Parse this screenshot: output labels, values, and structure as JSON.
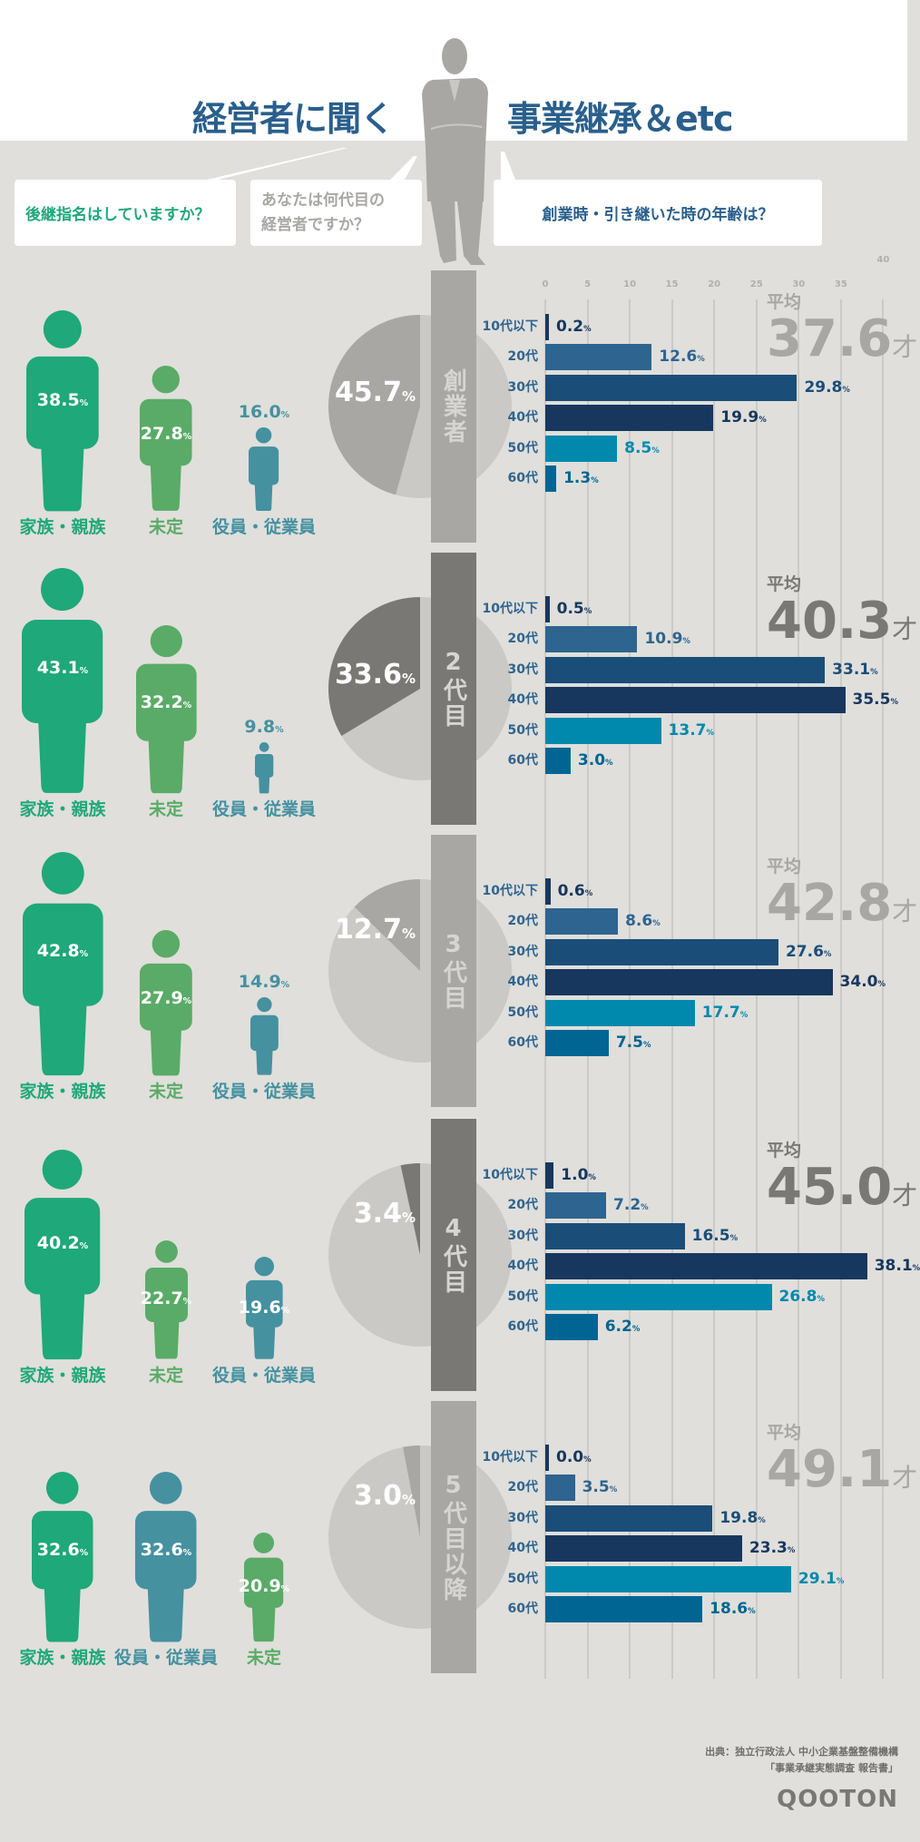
{
  "header": {
    "title_left": "経営者に聞く",
    "title_right": "事業継承＆etc"
  },
  "questions": {
    "q1": "後継指名はしていますか？",
    "q2_line1": "あなたは何代目の",
    "q2_line2": "経営者ですか？",
    "q3": "創業時・引き継いた時の年齢は？"
  },
  "colors": {
    "family": "#1fa87a",
    "undecided": "#5aab67",
    "employee": "#4591a0",
    "pie_rest": "#cac9c6",
    "gray_light": "#a8a7a3",
    "gray_dark": "#7a7875",
    "age_bars": [
      "#17375e",
      "#2e6490",
      "#1a4e78",
      "#17375e",
      "#0089ad",
      "#006592"
    ]
  },
  "average_label": "平均",
  "age_unit": "才",
  "pct_sign": "%",
  "chart_data": {
    "type": "bar",
    "orientation": "horizontal",
    "categories": [
      "10代以下",
      "20代",
      "30代",
      "40代",
      "50代",
      "60代"
    ],
    "xlim": [
      0,
      40
    ],
    "xticks": [
      "0",
      "5",
      "10",
      "15",
      "20",
      "25",
      "30",
      "35",
      "40"
    ],
    "grid": true,
    "sections": [
      {
        "label": "創業者",
        "tone": "light",
        "pie_pct": 45.7,
        "average": "37.6",
        "values": [
          0.2,
          12.6,
          29.8,
          19.9,
          8.5,
          1.3
        ],
        "people": [
          {
            "label": "家族・親族",
            "value": 38.5,
            "kind": "family"
          },
          {
            "label": "未定",
            "value": 27.8,
            "kind": "undecided"
          },
          {
            "label": "役員・従業員",
            "value": 16.0,
            "kind": "employee"
          }
        ]
      },
      {
        "label": "2代目",
        "tone": "dark",
        "pie_pct": 33.6,
        "average": "40.3",
        "values": [
          0.5,
          10.9,
          33.1,
          35.5,
          13.7,
          3.0
        ],
        "people": [
          {
            "label": "家族・親族",
            "value": 43.1,
            "kind": "family"
          },
          {
            "label": "未定",
            "value": 32.2,
            "kind": "undecided"
          },
          {
            "label": "役員・従業員",
            "value": 9.8,
            "kind": "employee"
          }
        ]
      },
      {
        "label": "3代目",
        "tone": "light",
        "pie_pct": 12.7,
        "average": "42.8",
        "values": [
          0.6,
          8.6,
          27.6,
          34.0,
          17.7,
          7.5
        ],
        "people": [
          {
            "label": "家族・親族",
            "value": 42.8,
            "kind": "family"
          },
          {
            "label": "未定",
            "value": 27.9,
            "kind": "undecided"
          },
          {
            "label": "役員・従業員",
            "value": 14.9,
            "kind": "employee"
          }
        ]
      },
      {
        "label": "4代目",
        "tone": "dark",
        "pie_pct": 3.4,
        "average": "45.0",
        "values": [
          1.0,
          7.2,
          16.5,
          38.1,
          26.8,
          6.2
        ],
        "people": [
          {
            "label": "家族・親族",
            "value": 40.2,
            "kind": "family"
          },
          {
            "label": "未定",
            "value": 22.7,
            "kind": "undecided"
          },
          {
            "label": "役員・従業員",
            "value": 19.6,
            "kind": "employee"
          }
        ]
      },
      {
        "label": "5代目以降",
        "tone": "light",
        "pie_pct": 3.0,
        "average": "49.1",
        "values": [
          0.0,
          3.5,
          19.8,
          23.3,
          29.1,
          18.6
        ],
        "people": [
          {
            "label": "家族・親族",
            "value": 32.6,
            "kind": "family"
          },
          {
            "label": "役員・従業員",
            "value": 32.6,
            "kind": "employee"
          },
          {
            "label": "未定",
            "value": 20.9,
            "kind": "undecided"
          }
        ]
      }
    ]
  },
  "footer": {
    "source_line1": "出典：独立行政法人 中小企業基盤整備機構",
    "source_line2": "「事業承継実態調査 報告書」",
    "logo": "QOOTON"
  }
}
